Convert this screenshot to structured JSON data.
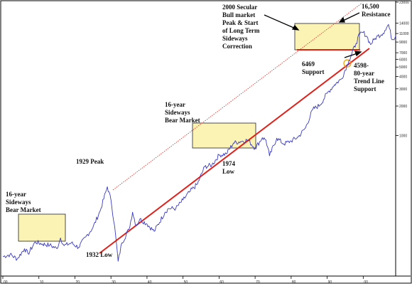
{
  "chart_data": {
    "type": "line",
    "title": "",
    "xlabel": "",
    "ylabel": "",
    "y_scale": "log",
    "x_axis_ticks": [
      "00",
      "10",
      "20",
      "30",
      "40",
      "50",
      "60",
      "70",
      "80",
      "90",
      "00"
    ],
    "y_axis_ticks": [
      23000,
      14000,
      11000,
      9000,
      7000,
      6000,
      5000,
      4000,
      3000,
      2000,
      1000
    ],
    "xlim": [
      1900,
      2009
    ],
    "ylim": [
      38,
      23000
    ],
    "series": [
      {
        "color": "#3a3ac4",
        "x": [
          1900,
          1902,
          1904,
          1906,
          1907,
          1909,
          1911,
          1913,
          1915,
          1916,
          1917,
          1919,
          1921,
          1923,
          1925,
          1927,
          1929,
          1930,
          1931,
          1932,
          1933,
          1935,
          1936,
          1937,
          1938,
          1940,
          1942,
          1945,
          1946,
          1948,
          1950,
          1952,
          1954,
          1956,
          1958,
          1960,
          1962,
          1964,
          1966,
          1968,
          1970,
          1972,
          1973,
          1974,
          1976,
          1978,
          1980,
          1982,
          1984,
          1986,
          1988,
          1990,
          1992,
          1994,
          1996,
          1998,
          1999,
          2000,
          2001,
          2002,
          2003,
          2004,
          2005,
          2006,
          2007,
          2008,
          2009
        ],
        "y": [
          58,
          61,
          55,
          70,
          62,
          82,
          78,
          76,
          70,
          90,
          75,
          80,
          72,
          92,
          115,
          170,
          300,
          220,
          120,
          52,
          80,
          110,
          165,
          120,
          140,
          125,
          105,
          165,
          180,
          180,
          220,
          270,
          320,
          480,
          500,
          630,
          650,
          840,
          870,
          900,
          740,
          950,
          900,
          620,
          940,
          820,
          880,
          970,
          1200,
          1850,
          2050,
          2700,
          3300,
          3800,
          5800,
          8700,
          10800,
          11300,
          10300,
          8500,
          9500,
          10400,
          10700,
          11800,
          13600,
          9500,
          10400
        ]
      }
    ],
    "annotations": [
      {
        "text": [
          "16-year",
          "Sideways",
          "Bear Market"
        ]
      },
      {
        "text": [
          "1929 Peak"
        ]
      },
      {
        "text": [
          "1932 Low"
        ]
      },
      {
        "text": [
          "16-year",
          "Sideways",
          "Bear Market"
        ]
      },
      {
        "text": [
          "1974",
          "Low"
        ]
      },
      {
        "text": [
          "2000 Secular",
          "Bull market",
          "Peak & Start",
          "of Long Term",
          "Sideways",
          "Correction"
        ]
      },
      {
        "text": [
          "16,500",
          "Resistance"
        ]
      },
      {
        "text": [
          "6469",
          "Support"
        ]
      },
      {
        "text": [
          "4598-",
          "80-year",
          "Trend Line",
          "Support"
        ]
      }
    ],
    "colors": {
      "price": "#3a3ac4",
      "trend_line": "#e0201a",
      "box_fill": "#fbf3b4",
      "box_stroke": "#222222"
    }
  }
}
